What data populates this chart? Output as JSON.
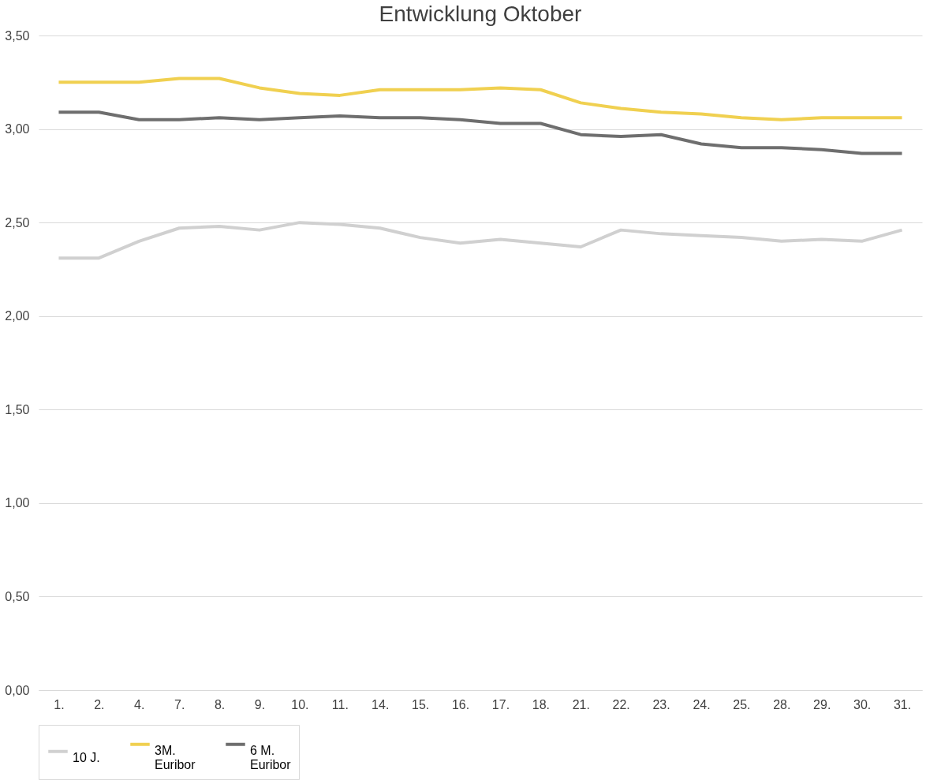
{
  "chart_data": {
    "type": "line",
    "title": "Entwicklung Oktober",
    "categories": [
      "1.",
      "2.",
      "4.",
      "7.",
      "8.",
      "9.",
      "10.",
      "11.",
      "14.",
      "15.",
      "16.",
      "17.",
      "18.",
      "21.",
      "22.",
      "23.",
      "24.",
      "25.",
      "28.",
      "29.",
      "30.",
      "31."
    ],
    "series": [
      {
        "name": "10 J.",
        "color": "#d0d0d0",
        "values": [
          2.31,
          2.31,
          2.4,
          2.47,
          2.48,
          2.46,
          2.5,
          2.49,
          2.47,
          2.42,
          2.39,
          2.41,
          2.39,
          2.37,
          2.46,
          2.44,
          2.43,
          2.42,
          2.4,
          2.41,
          2.4,
          2.46
        ]
      },
      {
        "name": "3M. Euribor",
        "color": "#f0d050",
        "values": [
          3.25,
          3.25,
          3.25,
          3.27,
          3.27,
          3.22,
          3.19,
          3.18,
          3.21,
          3.21,
          3.21,
          3.22,
          3.21,
          3.14,
          3.11,
          3.09,
          3.08,
          3.06,
          3.05,
          3.06,
          3.06,
          3.06
        ]
      },
      {
        "name": "6 M. Euribor",
        "color": "#6e6e6e",
        "values": [
          3.09,
          3.09,
          3.05,
          3.05,
          3.06,
          3.05,
          3.06,
          3.07,
          3.06,
          3.06,
          3.05,
          3.03,
          3.03,
          2.97,
          2.96,
          2.97,
          2.92,
          2.9,
          2.9,
          2.89,
          2.87,
          2.87
        ]
      }
    ],
    "ylim": [
      0,
      3.5
    ],
    "yticks": [
      {
        "value": 0,
        "label": "0,00"
      },
      {
        "value": 0.5,
        "label": "0,50"
      },
      {
        "value": 1,
        "label": "1,00"
      },
      {
        "value": 1.5,
        "label": "1,50"
      },
      {
        "value": 2,
        "label": "2,00"
      },
      {
        "value": 2.5,
        "label": "2,50"
      },
      {
        "value": 3,
        "label": "3,00"
      },
      {
        "value": 3.5,
        "label": "3,50"
      }
    ],
    "grid": "y",
    "legend": "bottom",
    "marker": "none",
    "line_style": "solid"
  }
}
